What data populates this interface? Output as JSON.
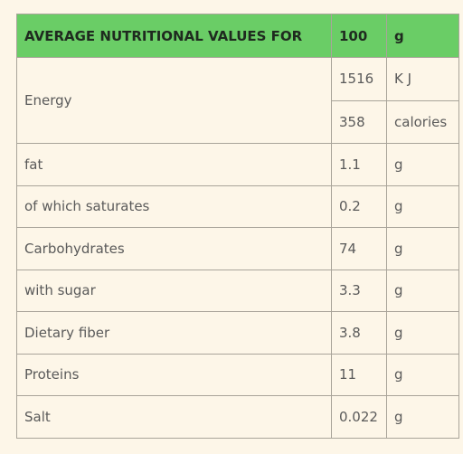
{
  "header": {
    "title": "AVERAGE NUTRITIONAL VALUES FOR",
    "amount": "100",
    "unit": "g"
  },
  "energy": {
    "label": "Energy",
    "values": [
      {
        "value": "1516",
        "unit": "K J"
      },
      {
        "value": "358",
        "unit": "calories"
      }
    ]
  },
  "rows": [
    [
      "fat",
      "1.1",
      "g"
    ],
    [
      "of which saturates",
      "0.2",
      "g"
    ],
    [
      "Carbohydrates",
      "74",
      "g"
    ],
    [
      "with sugar",
      "3.3",
      "g"
    ],
    [
      "Dietary fiber",
      "3.8",
      "g"
    ],
    [
      "Proteins",
      "11",
      "g"
    ],
    [
      "Salt",
      "0.022",
      "g"
    ]
  ]
}
